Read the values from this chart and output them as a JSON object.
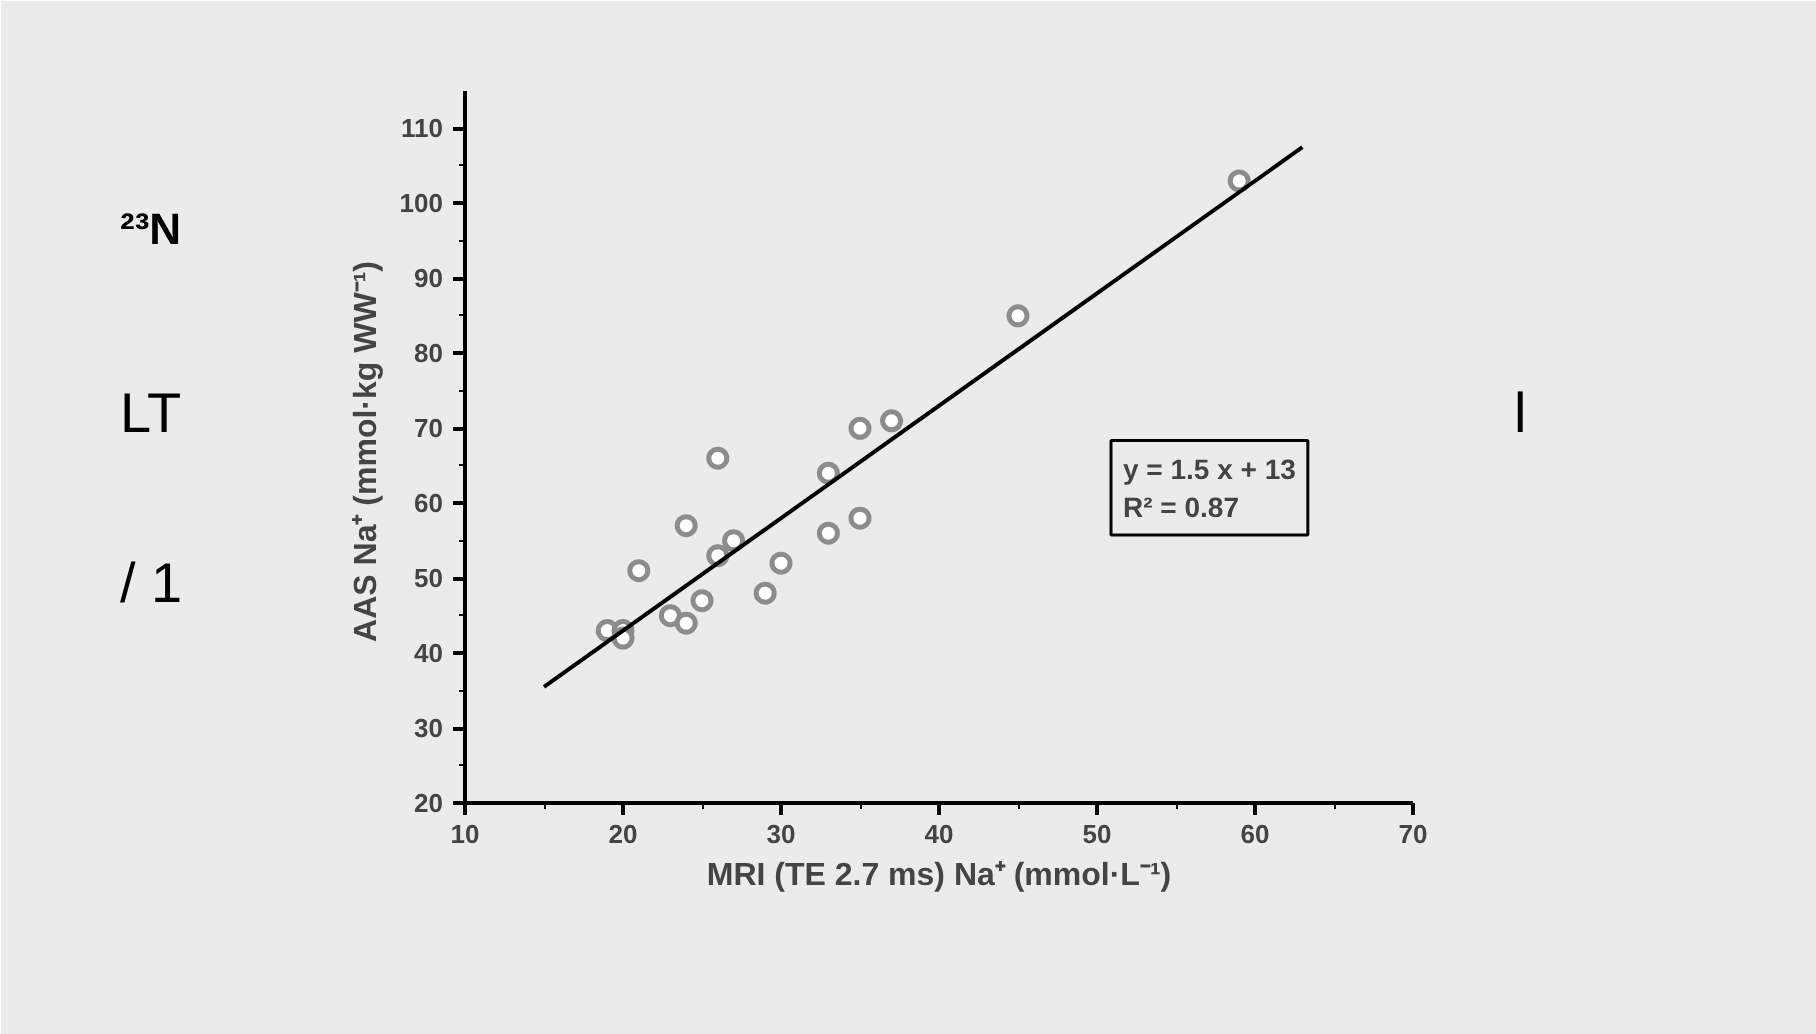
{
  "chart_data": {
    "type": "scatter",
    "xlabel": "MRI (TE 2.7 ms) Na⁺ (mmol·L⁻¹)",
    "ylabel": "AAS  Na⁺ (mmol·kg WW⁻¹)",
    "xlim": [
      10,
      70
    ],
    "xticks": [
      10,
      20,
      30,
      40,
      50,
      60,
      70
    ],
    "ylim": [
      20,
      115
    ],
    "yticks": [
      20,
      30,
      40,
      50,
      60,
      70,
      80,
      90,
      100,
      110
    ],
    "grid": false,
    "series": [
      {
        "marker": "circle",
        "color": "#8c8c8c",
        "x": [
          19,
          20,
          20,
          21,
          23,
          24,
          24,
          25,
          26,
          26,
          27,
          29,
          30,
          33,
          33,
          35,
          35,
          37,
          45,
          59
        ],
        "values": [
          43,
          43,
          42,
          51,
          45,
          44,
          57,
          47,
          53,
          66,
          55,
          48,
          52,
          64,
          56,
          70,
          58,
          71,
          85,
          103
        ]
      },
      {
        "type": "line",
        "color": "#000000",
        "x": [
          15,
          63
        ],
        "values": [
          35.5,
          107.5
        ]
      }
    ],
    "annotations": [
      "y = 1.5 x + 13",
      "R² = 0.87",
      "²³N",
      "LT",
      "/ 1",
      "l"
    ]
  }
}
